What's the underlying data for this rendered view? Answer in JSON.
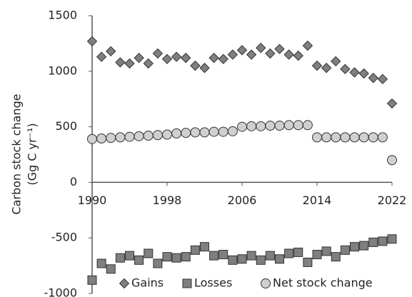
{
  "chart_data": {
    "type": "scatter",
    "y_label": [
      "Carbon stock change",
      "(Gg C yr⁻¹)"
    ],
    "x": [
      1990,
      1991,
      1992,
      1993,
      1994,
      1995,
      1996,
      1997,
      1998,
      1999,
      2000,
      2001,
      2002,
      2003,
      2004,
      2005,
      2006,
      2007,
      2008,
      2009,
      2010,
      2011,
      2012,
      2013,
      2014,
      2015,
      2016,
      2017,
      2018,
      2019,
      2020,
      2021,
      2022
    ],
    "series": [
      {
        "name": "Gains",
        "marker": "diamond",
        "color": "#7f7f7f",
        "values": [
          1270,
          1130,
          1180,
          1080,
          1070,
          1120,
          1070,
          1160,
          1110,
          1130,
          1120,
          1050,
          1030,
          1120,
          1110,
          1150,
          1190,
          1150,
          1210,
          1160,
          1200,
          1150,
          1140,
          1230,
          1050,
          1030,
          1090,
          1020,
          990,
          980,
          940,
          930,
          710
        ]
      },
      {
        "name": "Losses",
        "marker": "square",
        "color": "#7f7f7f",
        "values": [
          -880,
          -730,
          -780,
          -680,
          -660,
          -700,
          -640,
          -730,
          -670,
          -680,
          -670,
          -610,
          -580,
          -660,
          -650,
          -700,
          -690,
          -660,
          -700,
          -660,
          -690,
          -640,
          -630,
          -720,
          -650,
          -620,
          -670,
          -610,
          -580,
          -570,
          -540,
          -530,
          -510
        ]
      },
      {
        "name": "Net stock change",
        "marker": "circle",
        "color": "#d0d0d0",
        "values": [
          390,
          395,
          400,
          405,
          410,
          415,
          420,
          425,
          430,
          440,
          445,
          450,
          450,
          455,
          455,
          460,
          500,
          505,
          505,
          510,
          510,
          515,
          515,
          515,
          405,
          405,
          405,
          405,
          405,
          405,
          405,
          405,
          200
        ]
      }
    ],
    "xlim": [
      1990,
      2022
    ],
    "xticks": [
      1990,
      1998,
      2006,
      2014,
      2022
    ],
    "ylim": [
      -1000,
      1500
    ],
    "yticks": [
      -1000,
      -500,
      0,
      500,
      1000,
      1500
    ],
    "grid": false,
    "legend": "bottom"
  }
}
